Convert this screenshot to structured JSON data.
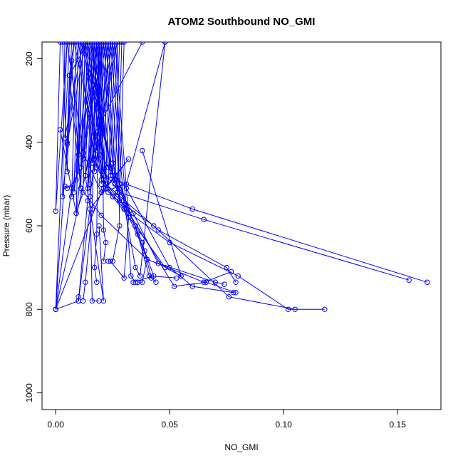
{
  "chart_data": {
    "type": "line",
    "title": "ATOM2 Southbound NO_GMI",
    "xlabel": "NO_GMI",
    "ylabel": "Pressure (mbar)",
    "xlim": [
      -0.006,
      0.169
    ],
    "ylim": [
      1040,
      160
    ],
    "y_reversed": true,
    "x_ticks": [
      0.0,
      0.05,
      0.1,
      0.15
    ],
    "x_tick_labels": [
      "0.00",
      "0.05",
      "0.10",
      "0.15"
    ],
    "y_ticks": [
      200,
      400,
      600,
      800,
      1000
    ],
    "y_tick_labels": [
      "200",
      "400",
      "600",
      "800",
      "1000"
    ],
    "series_color": "#0000ff",
    "point_marker": "open-circle",
    "grid": false,
    "legend": "none",
    "series": [
      {
        "x": [
          0.002,
          0.0,
          0.005,
          0.012,
          0.02,
          0.032,
          0.015,
          0.01,
          0.0
        ],
        "y": [
          160,
          565,
          160,
          425,
          520,
          440,
          560,
          780,
          800
        ]
      },
      {
        "x": [
          0.005,
          0.0,
          0.008,
          0.022,
          0.035,
          0.048,
          0.055,
          0.038
        ],
        "y": [
          160,
          800,
          160,
          510,
          600,
          700,
          720,
          420
        ]
      },
      {
        "x": [
          0.003,
          0.005,
          0.007,
          0.011,
          0.02,
          0.04,
          0.065,
          0.077
        ],
        "y": [
          160,
          470,
          205,
          510,
          575,
          680,
          735,
          710
        ]
      },
      {
        "x": [
          0.004,
          0.003,
          0.01,
          0.017,
          0.022,
          0.045,
          0.075,
          0.079
        ],
        "y": [
          160,
          530,
          160,
          440,
          500,
          610,
          700,
          735
        ]
      },
      {
        "x": [
          0.006,
          0.004,
          0.012,
          0.02,
          0.03,
          0.05,
          0.08,
          0.102,
          0.118
        ],
        "y": [
          160,
          390,
          160,
          490,
          560,
          640,
          720,
          800,
          800
        ]
      },
      {
        "x": [
          0.007,
          0.005,
          0.013,
          0.018,
          0.025,
          0.043,
          0.076,
          0.105
        ],
        "y": [
          160,
          405,
          160,
          460,
          530,
          600,
          770,
          800
        ]
      },
      {
        "x": [
          0.008,
          0.006,
          0.014,
          0.02,
          0.026,
          0.06,
          0.163
        ],
        "y": [
          160,
          240,
          160,
          430,
          490,
          560,
          735
        ]
      },
      {
        "x": [
          0.009,
          0.007,
          0.016,
          0.021,
          0.028,
          0.065,
          0.155
        ],
        "y": [
          160,
          530,
          160,
          470,
          520,
          585,
          730
        ]
      },
      {
        "x": [
          0.01,
          0.008,
          0.017,
          0.022,
          0.03,
          0.052,
          0.066,
          0.079
        ],
        "y": [
          160,
          520,
          160,
          500,
          550,
          745,
          735,
          760
        ]
      },
      {
        "x": [
          0.011,
          0.009,
          0.018,
          0.023,
          0.031,
          0.05,
          0.06,
          0.078
        ],
        "y": [
          160,
          570,
          160,
          460,
          510,
          700,
          745,
          760
        ]
      },
      {
        "x": [
          0.012,
          0.01,
          0.019,
          0.024,
          0.034,
          0.045,
          0.07,
          0.074
        ],
        "y": [
          160,
          430,
          160,
          480,
          570,
          690,
          735,
          740
        ]
      },
      {
        "x": [
          0.013,
          0.011,
          0.02,
          0.025,
          0.036,
          0.041,
          0.053
        ],
        "y": [
          160,
          460,
          160,
          450,
          620,
          720,
          725
        ]
      },
      {
        "x": [
          0.014,
          0.012,
          0.021,
          0.026,
          0.038,
          0.042,
          0.044
        ],
        "y": [
          160,
          440,
          160,
          490,
          640,
          725,
          735
        ]
      },
      {
        "x": [
          0.015,
          0.013,
          0.022,
          0.027,
          0.039,
          0.043,
          0.034
        ],
        "y": [
          160,
          480,
          160,
          520,
          660,
          720,
          735
        ]
      },
      {
        "x": [
          0.016,
          0.014,
          0.023,
          0.028,
          0.04,
          0.038,
          0.036
        ],
        "y": [
          160,
          510,
          160,
          500,
          680,
          735,
          735
        ]
      },
      {
        "x": [
          0.017,
          0.015,
          0.024,
          0.03,
          0.035,
          0.037,
          0.048
        ],
        "y": [
          160,
          530,
          160,
          550,
          700,
          720,
          160
        ]
      },
      {
        "x": [
          0.018,
          0.016,
          0.025,
          0.031,
          0.033,
          0.035
        ],
        "y": [
          160,
          450,
          160,
          560,
          720,
          735
        ]
      },
      {
        "x": [
          0.019,
          0.017,
          0.026,
          0.032,
          0.03,
          0.024
        ],
        "y": [
          160,
          470,
          160,
          580,
          725,
          685
        ]
      },
      {
        "x": [
          0.02,
          0.018,
          0.027,
          0.028,
          0.025,
          0.023
        ],
        "y": [
          160,
          420,
          160,
          600,
          685,
          685
        ]
      },
      {
        "x": [
          0.021,
          0.019,
          0.02,
          0.021,
          0.022,
          0.021
        ],
        "y": [
          160,
          440,
          160,
          610,
          640,
          685
        ]
      },
      {
        "x": [
          0.022,
          0.02,
          0.019,
          0.018,
          0.017,
          0.018
        ],
        "y": [
          160,
          500,
          160,
          620,
          700,
          735
        ]
      },
      {
        "x": [
          0.023,
          0.021,
          0.018,
          0.016,
          0.013,
          0.012
        ],
        "y": [
          160,
          510,
          160,
          560,
          735,
          780
        ]
      },
      {
        "x": [
          0.024,
          0.022,
          0.017,
          0.014,
          0.01,
          0.01
        ],
        "y": [
          160,
          490,
          160,
          540,
          780,
          770
        ]
      },
      {
        "x": [
          0.025,
          0.023,
          0.016,
          0.015,
          0.016,
          0.019
        ],
        "y": [
          160,
          520,
          160,
          500,
          780,
          780
        ]
      },
      {
        "x": [
          0.026,
          0.024,
          0.015,
          0.013,
          0.021,
          0.019
        ],
        "y": [
          160,
          460,
          160,
          480,
          780,
          600
        ]
      },
      {
        "x": [
          0.027,
          0.025,
          0.014,
          0.012,
          0.009,
          0.002
        ],
        "y": [
          160,
          480,
          160,
          520,
          570,
          370
        ]
      },
      {
        "x": [
          0.028,
          0.026,
          0.013,
          0.011,
          0.006,
          0.005
        ],
        "y": [
          160,
          500,
          160,
          510,
          240,
          400
        ]
      },
      {
        "x": [
          0.029,
          0.027,
          0.012,
          0.01,
          0.007,
          0.0
        ],
        "y": [
          160,
          520,
          160,
          470,
          510,
          800
        ]
      },
      {
        "x": [
          0.03,
          0.028,
          0.011,
          0.009,
          0.005,
          0.004
        ],
        "y": [
          160,
          540,
          160,
          490,
          510,
          505
        ]
      },
      {
        "x": [
          0.048,
          0.031,
          0.02,
          0.0
        ],
        "y": [
          160,
          500,
          520,
          800
        ]
      },
      {
        "x": [
          0.0,
          0.017,
          0.019,
          0.038
        ],
        "y": [
          800,
          380,
          360,
          160
        ]
      }
    ]
  }
}
